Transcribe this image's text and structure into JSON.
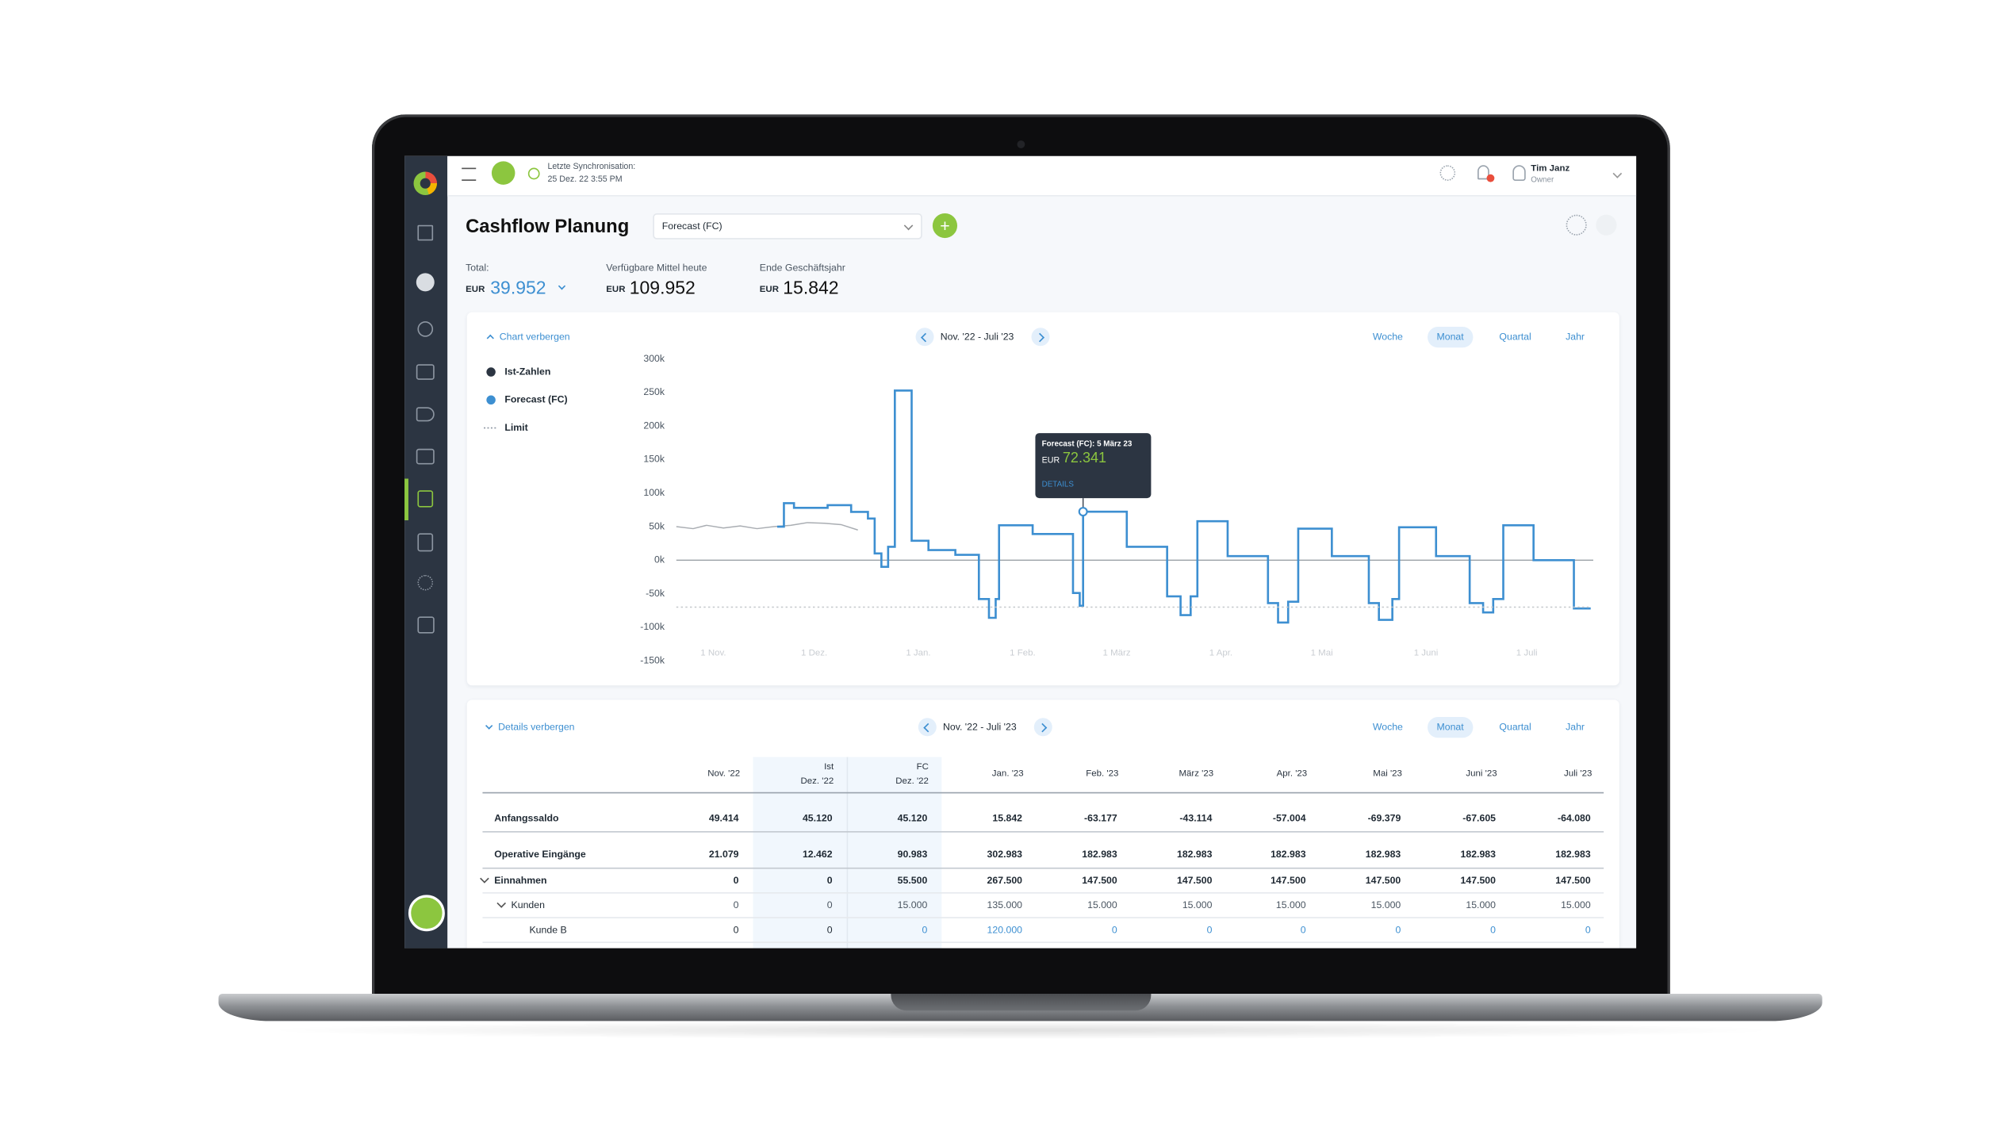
{
  "header": {
    "sync_label": "Letzte Synchronisation:",
    "sync_time": "25 Dez. 22 3:55 PM",
    "user_name": "Tim Janz",
    "user_role": "Owner"
  },
  "page": {
    "title": "Cashflow Planung",
    "scenario": "Forecast (FC)"
  },
  "kpis": [
    {
      "label": "Total:",
      "currency": "EUR",
      "value": "39.952"
    },
    {
      "label": "Verfügbare Mittel heute",
      "currency": "EUR",
      "value": "109.952"
    },
    {
      "label": "Ende Geschäftsjahr",
      "currency": "EUR",
      "value": "15.842"
    }
  ],
  "chart_panel": {
    "toggle": "Chart verbergen",
    "range": "Nov. '22 -  Juli '23",
    "periods": [
      "Woche",
      "Monat",
      "Quartal",
      "Jahr"
    ]
  },
  "tooltip": {
    "title": "Forecast (FC): 5 März 23",
    "currency": "EUR",
    "value": "72.341",
    "link": "DETAILS"
  },
  "chart_data": {
    "type": "line",
    "xlim": [
      -11,
      261
    ],
    "xticks": [
      {
        "value": 0,
        "label": "1 Nov."
      },
      {
        "value": 30,
        "label": "1 Dez."
      },
      {
        "value": 61,
        "label": "1 Jan."
      },
      {
        "value": 92,
        "label": "1 Feb."
      },
      {
        "value": 120,
        "label": "1 März"
      },
      {
        "value": 151,
        "label": "1 Apr."
      },
      {
        "value": 181,
        "label": "1 Mai"
      },
      {
        "value": 212,
        "label": "1 Juni"
      },
      {
        "value": 242,
        "label": "1 Juli"
      }
    ],
    "ylim": [
      -150,
      300
    ],
    "yticks": [
      {
        "value": 300,
        "label": "300k"
      },
      {
        "value": 250,
        "label": "250k"
      },
      {
        "value": 200,
        "label": "200k"
      },
      {
        "value": 150,
        "label": "150k"
      },
      {
        "value": 100,
        "label": "100k"
      },
      {
        "value": 50,
        "label": "50k"
      },
      {
        "value": 0,
        "label": "0k"
      },
      {
        "value": -50,
        "label": "-50k"
      },
      {
        "value": -100,
        "label": "-100k"
      },
      {
        "value": -150,
        "label": "-150k"
      }
    ],
    "grid": false,
    "series": [
      {
        "name": "Ist-Zahlen",
        "color": "#a9adb2",
        "style": "solid",
        "x": [
          -11,
          -6,
          -2,
          3,
          8,
          13,
          18,
          23,
          28,
          33,
          38,
          43
        ],
        "values": [
          50,
          47,
          52,
          48,
          51,
          47,
          50,
          52,
          56,
          55,
          53,
          45
        ]
      },
      {
        "name": "Forecast (FC)",
        "color": "#3d8fd1",
        "style": "solid",
        "x": [
          19,
          21,
          21,
          24,
          24,
          34,
          34,
          41,
          41,
          46,
          46,
          48,
          48,
          50,
          50,
          52,
          52,
          54,
          54,
          59,
          59,
          64,
          64,
          72,
          72,
          79,
          79,
          82,
          82,
          84,
          84,
          85,
          85,
          95,
          95,
          107,
          107,
          109,
          109,
          110,
          110,
          123,
          123,
          135,
          135,
          139,
          139,
          142,
          142,
          144,
          144,
          153,
          153,
          165,
          165,
          168,
          168,
          171,
          171,
          174,
          174,
          184,
          184,
          195,
          195,
          198,
          198,
          202,
          202,
          204,
          204,
          215,
          215,
          225,
          225,
          229,
          229,
          232,
          232,
          235,
          235,
          244,
          244,
          256,
          256,
          261
        ],
        "values": [
          50,
          50,
          85,
          85,
          78,
          78,
          82,
          82,
          72,
          72,
          62,
          62,
          10,
          10,
          -10,
          -10,
          20,
          20,
          253,
          253,
          29,
          29,
          15,
          15,
          8,
          8,
          -58,
          -58,
          -86,
          -86,
          -58,
          -58,
          52,
          52,
          39,
          39,
          -49,
          -49,
          -68,
          -68,
          72.341,
          72.341,
          20,
          20,
          -54,
          -54,
          -82,
          -82,
          -54,
          -54,
          58,
          58,
          6,
          6,
          -64,
          -64,
          -93,
          -93,
          -62,
          -62,
          47,
          47,
          6,
          6,
          -64,
          -64,
          -89,
          -89,
          -58,
          -58,
          49,
          49,
          6,
          6,
          -64,
          -64,
          -78,
          -78,
          -58,
          -58,
          52,
          52,
          0,
          0,
          -72,
          -72
        ]
      },
      {
        "name": "Limit",
        "color": "#c4c7cb",
        "style": "dotted",
        "x": [
          -11,
          261
        ],
        "values": [
          -70,
          -70
        ]
      }
    ]
  },
  "details_panel": {
    "toggle": "Details verbergen",
    "range": "Nov. '22 - Juli '23",
    "periods": [
      "Woche",
      "Monat",
      "Quartal",
      "Jahr"
    ]
  },
  "table": {
    "columns": [
      [
        "Nov. '22"
      ],
      [
        "Ist",
        "Dez. '22"
      ],
      [
        "FC",
        "Dez. '22"
      ],
      [
        "Jan. '23"
      ],
      [
        "Feb. '23"
      ],
      [
        "März '23"
      ],
      [
        "Apr. '23"
      ],
      [
        "Mai '23"
      ],
      [
        "Juni '23"
      ],
      [
        "Juli '23"
      ]
    ],
    "rows": [
      {
        "label": "Anfangssaldo",
        "level": 0,
        "cells": [
          "49.414",
          "45.120",
          "45.120",
          "15.842",
          "-63.177",
          "-43.114",
          "-57.004",
          "-69.379",
          "-67.605",
          "-64.080"
        ]
      },
      {
        "label": "Operative Eingänge",
        "level": 0,
        "cells": [
          "21.079",
          "12.462",
          "90.983",
          "302.983",
          "182.983",
          "182.983",
          "182.983",
          "182.983",
          "182.983",
          "182.983"
        ]
      },
      {
        "label": "Einnahmen",
        "level": 1,
        "cells": [
          "0",
          "0",
          "55.500",
          "267.500",
          "147.500",
          "147.500",
          "147.500",
          "147.500",
          "147.500",
          "147.500"
        ]
      },
      {
        "label": "Kunden",
        "level": 2,
        "cells": [
          "0",
          "0",
          "15.000",
          "135.000",
          "15.000",
          "15.000",
          "15.000",
          "15.000",
          "15.000",
          "15.000"
        ]
      },
      {
        "label": "Kunde B",
        "level": 3,
        "cells": [
          "0",
          "0",
          "0",
          "120.000",
          "0",
          "0",
          "0",
          "0",
          "0",
          "0"
        ]
      }
    ]
  }
}
